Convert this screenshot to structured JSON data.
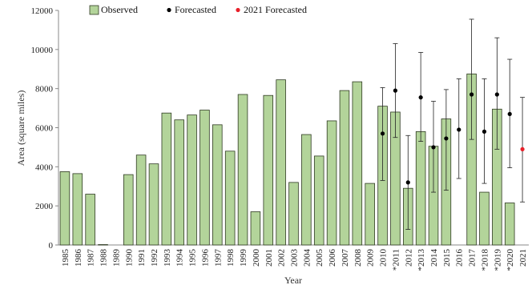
{
  "chart_data": {
    "type": "bar",
    "title": "",
    "xlabel": "Year",
    "ylabel": "Area (square miles)",
    "ylim": [
      0,
      12000
    ],
    "yticks": [
      0,
      2000,
      4000,
      6000,
      8000,
      10000,
      12000
    ],
    "ytick_labels": [
      "0",
      "2000",
      "4000",
      "6000",
      "8000",
      "10000",
      "12000"
    ],
    "grid": false,
    "legend_position": "top-left",
    "legend": {
      "observed": "Observed",
      "forecasted": "Forecasted",
      "forecasted_2021": "2021 Forecasted"
    },
    "colors": {
      "bar_fill": "#b3d49a",
      "bar_stroke": "#2f3a22",
      "forecast_point": "#000000",
      "forecast_2021_point": "#e8202a",
      "error_bar": "#222222"
    },
    "categories": [
      "1985",
      "1986",
      "1987",
      "1988",
      "1989",
      "1990",
      "1991",
      "1992",
      "1993",
      "1994",
      "1995",
      "1996",
      "1997",
      "1998",
      "1999",
      "2000",
      "2001",
      "2002",
      "2003",
      "2004",
      "2005",
      "2006",
      "2007",
      "2008",
      "2009",
      "2010",
      "*2011",
      "2012",
      "*2013",
      "2014",
      "2015",
      "2016",
      "2017",
      "*2018",
      "*2019",
      "*2020",
      "2021"
    ],
    "series": [
      {
        "name": "Observed",
        "values": [
          3750,
          3650,
          2600,
          20,
          0,
          3600,
          4600,
          4150,
          6750,
          6400,
          6650,
          6900,
          6150,
          4800,
          7700,
          1700,
          7650,
          8450,
          3200,
          5650,
          4550,
          6350,
          7900,
          8350,
          3150,
          7100,
          6800,
          2900,
          5800,
          5050,
          6450,
          0,
          8750,
          2700,
          6950,
          2150,
          null
        ]
      },
      {
        "name": "Forecasted",
        "points": [
          {
            "category": "2010",
            "y": 5700,
            "low": 3300,
            "high": 8050
          },
          {
            "category": "*2011",
            "y": 7900,
            "low": 5500,
            "high": 10300
          },
          {
            "category": "2012",
            "y": 3200,
            "low": 800,
            "high": 5600
          },
          {
            "category": "*2013",
            "y": 7550,
            "low": 5300,
            "high": 9850
          },
          {
            "category": "2014",
            "y": 5000,
            "low": 2700,
            "high": 7350
          },
          {
            "category": "2015",
            "y": 5450,
            "low": 2800,
            "high": 7950
          },
          {
            "category": "2016",
            "y": 5900,
            "low": 3400,
            "high": 8500
          },
          {
            "category": "2017",
            "y": 7700,
            "low": 5400,
            "high": 11550
          },
          {
            "category": "*2018",
            "y": 5800,
            "low": 3150,
            "high": 8500
          },
          {
            "category": "*2019",
            "y": 7700,
            "low": 4900,
            "high": 10600
          },
          {
            "category": "*2020",
            "y": 6700,
            "low": 3950,
            "high": 9500
          }
        ]
      },
      {
        "name": "2021 Forecasted",
        "points": [
          {
            "category": "2021",
            "y": 4900,
            "low": 2200,
            "high": 7550
          }
        ]
      }
    ]
  }
}
